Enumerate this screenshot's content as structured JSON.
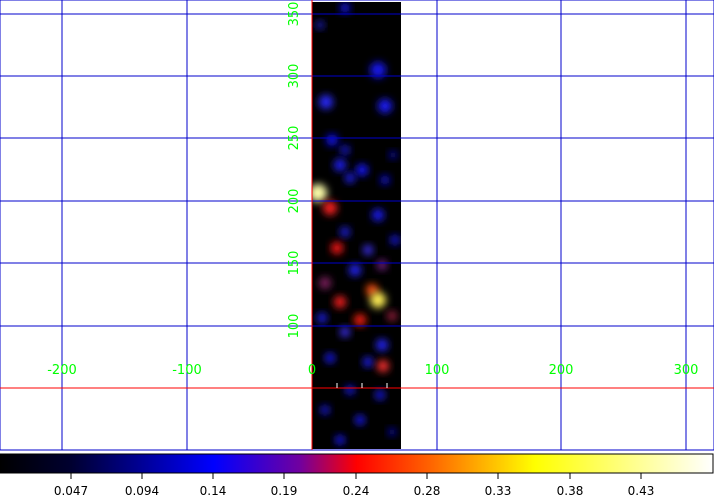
{
  "image_panel": {
    "x_ticks": [
      "-200",
      "-100",
      "0",
      "100",
      "200",
      "300"
    ],
    "y_ticks": [
      "100",
      "150",
      "200",
      "250",
      "300",
      "350"
    ],
    "grid_color": "#0000cc",
    "axis_color": "#ff0000",
    "label_color": "#00ff00"
  },
  "colorbar": {
    "colormap": "heat (black-blue-red-yellow-white)",
    "tick_labels": [
      "0.047",
      "0.094",
      "0.14",
      "0.19",
      "0.24",
      "0.28",
      "0.33",
      "0.38",
      "0.43"
    ]
  }
}
